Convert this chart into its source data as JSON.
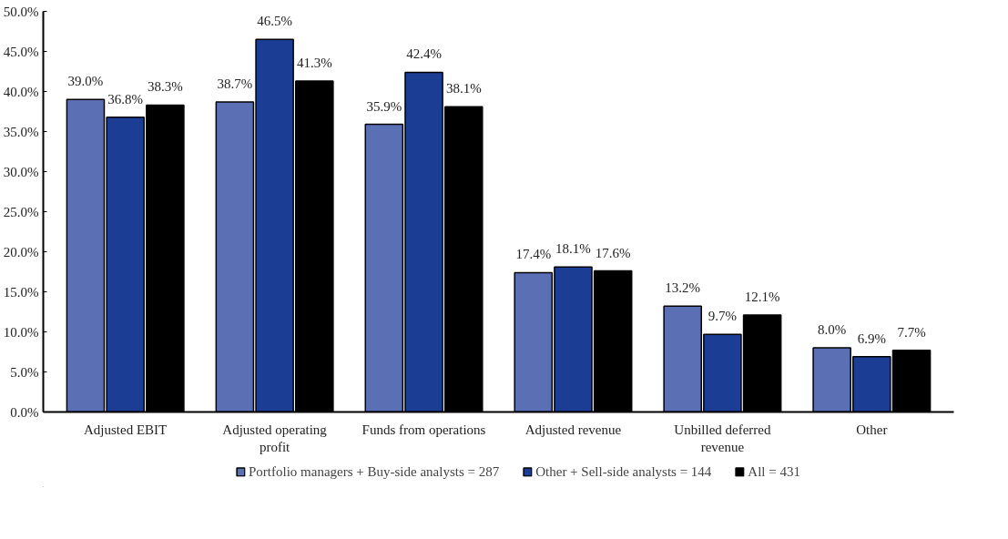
{
  "chart_data": {
    "type": "bar",
    "categories": [
      "Adjusted EBIT",
      "Adjusted operating\nprofit",
      "Funds from operations",
      "Adjusted revenue",
      "Unbilled deferred\nrevenue",
      "Other"
    ],
    "series": [
      {
        "name": "Portfolio managers + Buy-side analysts = 287",
        "color": "#5b6fb5",
        "values": [
          39.0,
          38.7,
          35.9,
          17.4,
          13.2,
          8.0
        ],
        "value_labels": [
          "39.0%",
          "38.7%",
          "35.9%",
          "17.4%",
          "13.2%",
          "8.0%"
        ]
      },
      {
        "name": "Other + Sell-side analysts = 144",
        "color": "#1b3e94",
        "values": [
          36.8,
          46.5,
          42.4,
          18.1,
          9.7,
          6.9
        ],
        "value_labels": [
          "36.8%",
          "46.5%",
          "42.4%",
          "18.1%",
          "9.7%",
          "6.9%"
        ]
      },
      {
        "name": "All = 431",
        "color": "#000000",
        "values": [
          38.3,
          41.3,
          38.1,
          17.6,
          12.1,
          7.7
        ],
        "value_labels": [
          "38.3%",
          "41.3%",
          "38.1%",
          "17.6%",
          "12.1%",
          "7.7%"
        ]
      }
    ],
    "ylim": [
      0,
      50
    ],
    "yticks": [
      {
        "value": 0,
        "label": "0.0%"
      },
      {
        "value": 5,
        "label": "5.0%"
      },
      {
        "value": 10,
        "label": "10.0%"
      },
      {
        "value": 15,
        "label": "15.0%"
      },
      {
        "value": 20,
        "label": "20.0%"
      },
      {
        "value": 25,
        "label": "25.0%"
      },
      {
        "value": 30,
        "label": "30.0%"
      },
      {
        "value": 35,
        "label": "35.0%"
      },
      {
        "value": 40,
        "label": "40.0%"
      },
      {
        "value": 45,
        "label": "45.0%"
      },
      {
        "value": 50,
        "label": "50.0%"
      }
    ],
    "grid": false,
    "legend": "bottom"
  }
}
